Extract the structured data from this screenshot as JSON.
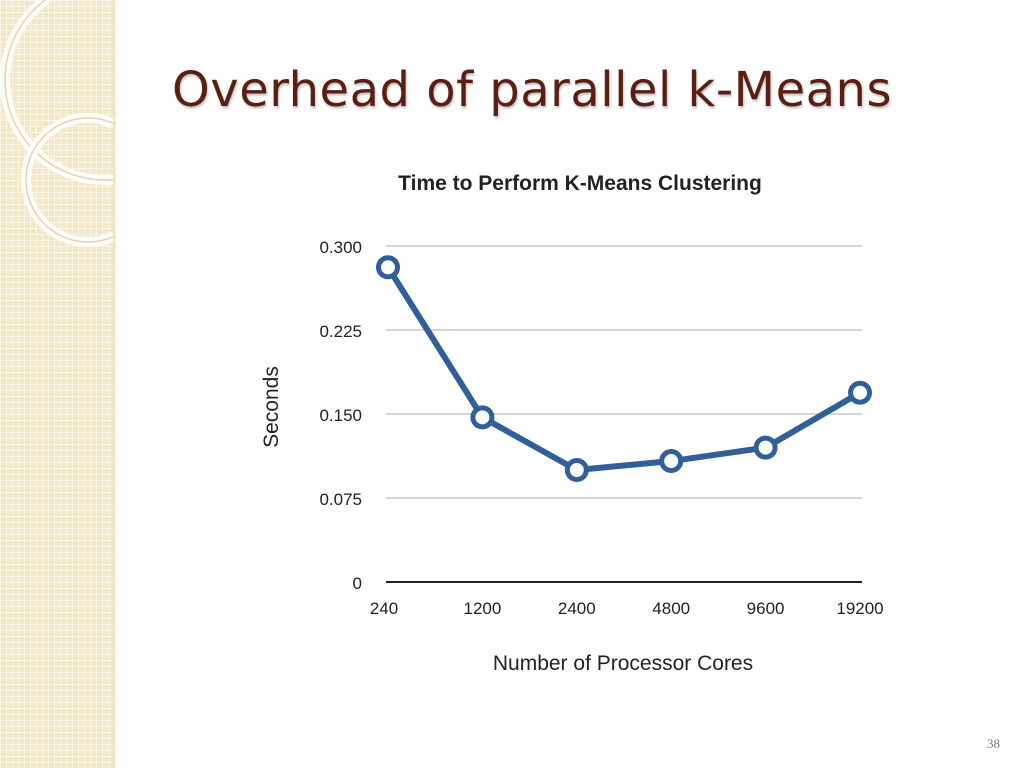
{
  "slide": {
    "title": "Overhead of parallel k-Means",
    "page_number": "38"
  },
  "colors": {
    "title": "#5a1f12",
    "series_line": "#305f99",
    "sidebar": "#f4e7c4",
    "gridline": "#c8c8c8"
  },
  "chart_data": {
    "type": "line",
    "title": "Time to Perform K-Means Clustering",
    "xlabel": "Number of Processor Cores",
    "ylabel": "Seconds",
    "categories": [
      "240",
      "1200",
      "2400",
      "4800",
      "9600",
      "19200"
    ],
    "series": [
      {
        "values": [
          0.281,
          0.147,
          0.1,
          0.108,
          0.12,
          0.169
        ]
      }
    ],
    "ylim": [
      0,
      0.3
    ],
    "yticks": [
      0,
      0.075,
      0.15,
      0.225,
      0.3
    ],
    "ytick_labels": [
      "0",
      "0.075",
      "0.150",
      "0.225",
      "0.300"
    ],
    "grid": true,
    "legend": "none",
    "markers": "hollow-circle"
  }
}
